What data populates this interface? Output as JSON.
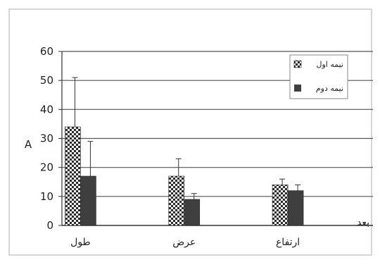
{
  "chart_data": {
    "type": "bar",
    "categories": [
      "طول",
      "عرض",
      "ارتفاع"
    ],
    "series": [
      {
        "name": "نیمه اول",
        "values": [
          34,
          17,
          14
        ],
        "errors": [
          17,
          6,
          2
        ],
        "pattern": "checker"
      },
      {
        "name": "نیمه دوم",
        "values": [
          17,
          9,
          12
        ],
        "errors": [
          12,
          2,
          2
        ],
        "pattern": "solid"
      }
    ],
    "ylim": [
      0,
      60
    ],
    "yticks": [
      0,
      10,
      20,
      30,
      40,
      50,
      60
    ],
    "ylabel": "A",
    "xlabel": "بعد",
    "grid": true,
    "legend": "top-right",
    "colors": {
      "solid": "#3f3f3f",
      "checker_dark": "#2a2a2a",
      "checker_light": "#f4f4f4",
      "grid": "#555555"
    }
  }
}
